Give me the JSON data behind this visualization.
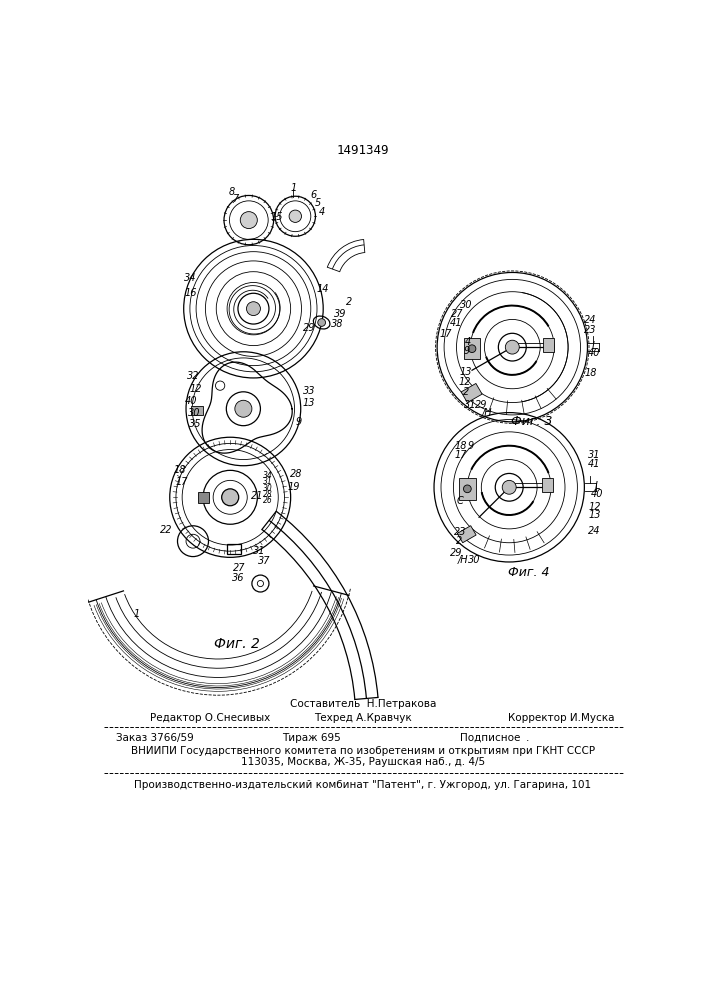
{
  "patent_number": "1491349",
  "fig2_label": "Фиг. 2",
  "fig3_label": "Фиг. 3",
  "fig4_label": "Фиг. 4",
  "bg_color": "#ffffff",
  "line_color": "#000000",
  "footer": {
    "sostavitel": "Составитель  Н.Петракова",
    "redaktor": "Редактор О.Снесивых",
    "tehred": "Техред А.Кравчук",
    "korrektor": "Корректор И.Муска",
    "zakaz": "Заказ 3766/59",
    "tirazh": "Тираж 695",
    "podpisnoe": "Подписное",
    "vniiipi": "ВНИИПИ Государственного комитета по изобретениям и открытиям при ГКНТ СССР",
    "address": "113035, Москва, Ж-35, Раушская наб., д. 4/5",
    "factory": "Производственно-издательский комбинат \"Патент\", г. Ужгород, ул. Гагарина, 101"
  }
}
